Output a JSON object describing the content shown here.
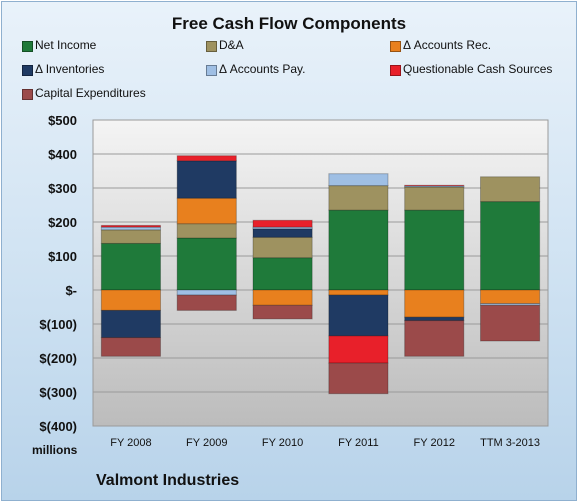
{
  "chart_data": {
    "type": "bar",
    "stacked": true,
    "title": "Free Cash Flow Components",
    "company": "Valmont Industries",
    "units": "millions",
    "categories": [
      "FY 2008",
      "FY 2009",
      "FY 2010",
      "FY 2011",
      "FY 2012",
      "TTM 3-2013"
    ],
    "ylim": [
      -400,
      500
    ],
    "yticks": [
      500,
      400,
      300,
      200,
      100,
      0,
      -100,
      -200,
      -300,
      -400
    ],
    "ytick_labels": [
      "$500",
      "$400",
      "$300",
      "$200",
      "$100",
      "$-",
      "$(100)",
      "$(200)",
      "$(300)",
      "$(400)"
    ],
    "grid": true,
    "legend_position": "top",
    "series": [
      {
        "name": "Net Income",
        "color": "#1f7a3a",
        "values": [
          137,
          153,
          95,
          235,
          235,
          260
        ]
      },
      {
        "name": "D&A",
        "color": "#9e9260",
        "values": [
          40,
          42,
          60,
          72,
          68,
          73
        ]
      },
      {
        "name": "Δ Accounts Rec.",
        "color": "#e8801e",
        "values": [
          -60,
          75,
          -45,
          -15,
          -80,
          -40
        ]
      },
      {
        "name": "Δ Inventories",
        "color": "#1f3a63",
        "values": [
          -80,
          110,
          25,
          -120,
          -10,
          0
        ]
      },
      {
        "name": "Δ Accounts Pay.",
        "color": "#9fbfe4",
        "values": [
          8,
          -15,
          5,
          35,
          3,
          -5
        ]
      },
      {
        "name": "Questionable Cash Sources",
        "color": "#e8202a",
        "values": [
          5,
          15,
          20,
          -80,
          2,
          0
        ]
      },
      {
        "name": "Capital Expenditures",
        "color": "#9b4a4a",
        "values": [
          -55,
          -45,
          -40,
          -90,
          -105,
          -105
        ]
      }
    ]
  }
}
